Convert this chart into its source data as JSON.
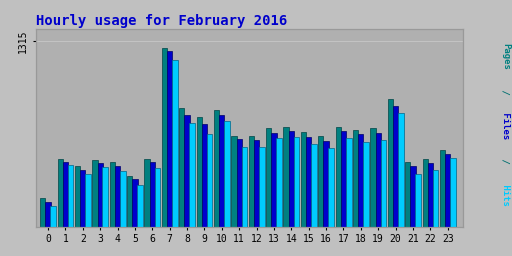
{
  "title": "Hourly usage for February 2016",
  "hours": [
    0,
    1,
    2,
    3,
    4,
    5,
    6,
    7,
    8,
    9,
    10,
    11,
    12,
    13,
    14,
    15,
    16,
    17,
    18,
    19,
    20,
    21,
    22,
    23
  ],
  "pages": [
    200,
    480,
    430,
    470,
    455,
    360,
    480,
    1270,
    845,
    775,
    825,
    645,
    645,
    700,
    705,
    675,
    640,
    710,
    685,
    700,
    905,
    460,
    480,
    545
  ],
  "files": [
    175,
    460,
    405,
    450,
    430,
    340,
    455,
    1245,
    795,
    725,
    795,
    620,
    615,
    665,
    680,
    638,
    608,
    678,
    655,
    665,
    856,
    428,
    448,
    518
  ],
  "hits": [
    145,
    438,
    375,
    425,
    398,
    295,
    415,
    1180,
    738,
    660,
    750,
    568,
    565,
    626,
    637,
    587,
    557,
    626,
    600,
    615,
    806,
    375,
    405,
    485
  ],
  "color_pages": "#008080",
  "color_files": "#0000cc",
  "color_hits": "#00ccff",
  "color_pages_edge": "#004444",
  "color_files_edge": "#000066",
  "color_hits_edge": "#006688",
  "bg_color": "#c0c0c0",
  "plot_bg": "#b0b0b0",
  "title_color": "#0000cc",
  "ylabel_color_pages": "#008080",
  "ylabel_color_files": "#0000cc",
  "ylabel_color_hits": "#00ccff",
  "ylim_max": 1400,
  "bar_width": 0.3,
  "ytick": 1315
}
